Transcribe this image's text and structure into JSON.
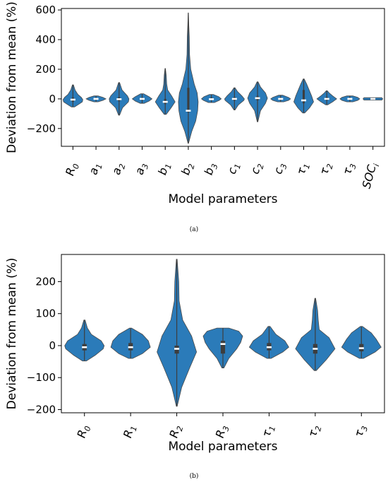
{
  "chart_data": [
    {
      "type": "violin",
      "caption": "(a)",
      "xlabel": "Model parameters",
      "ylabel": "Deviation from mean (%)",
      "ylim": [
        -320,
        610
      ],
      "yticks": [
        -200,
        0,
        200,
        400,
        600
      ],
      "tick_labels": [
        "−200",
        "0",
        "200",
        "400",
        "600"
      ],
      "color": "#2b7bb9",
      "categories": [
        {
          "base": "R",
          "sub": "0"
        },
        {
          "base": "a",
          "sub": "1"
        },
        {
          "base": "a",
          "sub": "2"
        },
        {
          "base": "a",
          "sub": "3"
        },
        {
          "base": "b",
          "sub": "1"
        },
        {
          "base": "b",
          "sub": "2"
        },
        {
          "base": "b",
          "sub": "3"
        },
        {
          "base": "c",
          "sub": "1"
        },
        {
          "base": "c",
          "sub": "2"
        },
        {
          "base": "c",
          "sub": "3"
        },
        {
          "base": "τ",
          "sub": "1"
        },
        {
          "base": "τ",
          "sub": "2"
        },
        {
          "base": "τ",
          "sub": "3"
        },
        {
          "base": "SOC",
          "sub": "i"
        }
      ],
      "violins": [
        {
          "min": -55,
          "max": 95,
          "median": -5,
          "q1": -20,
          "q3": 10,
          "shape": [
            [
              -55,
              0.15
            ],
            [
              -40,
              0.5
            ],
            [
              -20,
              0.95
            ],
            [
              -5,
              1.0
            ],
            [
              10,
              0.85
            ],
            [
              30,
              0.5
            ],
            [
              60,
              0.22
            ],
            [
              95,
              0.05
            ]
          ]
        },
        {
          "min": -20,
          "max": 20,
          "median": 0,
          "q1": -5,
          "q3": 5,
          "shape": [
            [
              -20,
              0.2
            ],
            [
              -10,
              0.7
            ],
            [
              0,
              1.0
            ],
            [
              10,
              0.7
            ],
            [
              20,
              0.2
            ]
          ]
        },
        {
          "min": -110,
          "max": 110,
          "median": -2,
          "q1": -15,
          "q3": 12,
          "shape": [
            [
              -110,
              0.05
            ],
            [
              -60,
              0.35
            ],
            [
              -20,
              0.95
            ],
            [
              0,
              1.0
            ],
            [
              20,
              0.85
            ],
            [
              60,
              0.3
            ],
            [
              110,
              0.05
            ]
          ]
        },
        {
          "min": -30,
          "max": 35,
          "median": 0,
          "q1": -8,
          "q3": 8,
          "shape": [
            [
              -30,
              0.2
            ],
            [
              -15,
              0.7
            ],
            [
              0,
              1.0
            ],
            [
              15,
              0.7
            ],
            [
              35,
              0.15
            ]
          ]
        },
        {
          "min": -105,
          "max": 205,
          "median": -20,
          "q1": -35,
          "q3": 0,
          "shape": [
            [
              -105,
              0.1
            ],
            [
              -60,
              0.6
            ],
            [
              -20,
              1.0
            ],
            [
              20,
              0.65
            ],
            [
              60,
              0.25
            ],
            [
              100,
              0.15
            ],
            [
              160,
              0.1
            ],
            [
              205,
              0.02
            ]
          ]
        },
        {
          "min": -300,
          "max": 580,
          "median": -80,
          "q1": -90,
          "q3": 75,
          "shape": [
            [
              -300,
              0.02
            ],
            [
              -220,
              0.35
            ],
            [
              -150,
              0.75
            ],
            [
              -80,
              0.95
            ],
            [
              -20,
              1.0
            ],
            [
              40,
              0.9
            ],
            [
              100,
              0.6
            ],
            [
              200,
              0.25
            ],
            [
              300,
              0.13
            ],
            [
              420,
              0.1
            ],
            [
              500,
              0.05
            ],
            [
              580,
              0.01
            ]
          ]
        },
        {
          "min": -25,
          "max": 30,
          "median": -2,
          "q1": -8,
          "q3": 8,
          "shape": [
            [
              -25,
              0.3
            ],
            [
              -10,
              0.8
            ],
            [
              0,
              1.0
            ],
            [
              15,
              0.75
            ],
            [
              30,
              0.2
            ]
          ]
        },
        {
          "min": -75,
          "max": 75,
          "median": 0,
          "q1": -12,
          "q3": 12,
          "shape": [
            [
              -75,
              0.05
            ],
            [
              -40,
              0.4
            ],
            [
              -10,
              0.95
            ],
            [
              0,
              1.0
            ],
            [
              20,
              0.75
            ],
            [
              50,
              0.3
            ],
            [
              75,
              0.05
            ]
          ]
        },
        {
          "min": -155,
          "max": 115,
          "median": 5,
          "q1": -10,
          "q3": 20,
          "shape": [
            [
              -155,
              0.03
            ],
            [
              -80,
              0.3
            ],
            [
              -30,
              0.8
            ],
            [
              5,
              1.0
            ],
            [
              40,
              0.8
            ],
            [
              80,
              0.3
            ],
            [
              115,
              0.05
            ]
          ]
        },
        {
          "min": -20,
          "max": 25,
          "median": 0,
          "q1": -6,
          "q3": 6,
          "shape": [
            [
              -20,
              0.3
            ],
            [
              -10,
              0.8
            ],
            [
              0,
              1.0
            ],
            [
              10,
              0.8
            ],
            [
              25,
              0.2
            ]
          ]
        },
        {
          "min": -95,
          "max": 135,
          "median": -10,
          "q1": -30,
          "q3": 60,
          "shape": [
            [
              -95,
              0.1
            ],
            [
              -60,
              0.6
            ],
            [
              -20,
              1.0
            ],
            [
              20,
              0.8
            ],
            [
              60,
              0.55
            ],
            [
              100,
              0.3
            ],
            [
              135,
              0.05
            ]
          ]
        },
        {
          "min": -40,
          "max": 55,
          "median": 0,
          "q1": -10,
          "q3": 12,
          "shape": [
            [
              -40,
              0.1
            ],
            [
              -20,
              0.6
            ],
            [
              0,
              1.0
            ],
            [
              20,
              0.6
            ],
            [
              40,
              0.25
            ],
            [
              55,
              0.05
            ]
          ]
        },
        {
          "min": -20,
          "max": 20,
          "median": 0,
          "q1": -5,
          "q3": 5,
          "shape": [
            [
              -20,
              0.3
            ],
            [
              -10,
              0.8
            ],
            [
              0,
              1.0
            ],
            [
              10,
              0.8
            ],
            [
              20,
              0.3
            ]
          ]
        },
        {
          "min": -8,
          "max": 8,
          "median": 0,
          "q1": -2,
          "q3": 2,
          "shape": [
            [
              -8,
              0.9
            ],
            [
              0,
              1.0
            ],
            [
              8,
              0.9
            ]
          ]
        }
      ]
    },
    {
      "type": "violin",
      "caption": "(b)",
      "xlabel": "Model parameters",
      "ylabel": "Deviation from mean (%)",
      "ylim": [
        -210,
        285
      ],
      "yticks": [
        -200,
        -100,
        0,
        100,
        200
      ],
      "tick_labels": [
        "−200",
        "−100",
        "0",
        "100",
        "200"
      ],
      "color": "#2b7bb9",
      "categories": [
        {
          "base": "R",
          "sub": "0"
        },
        {
          "base": "R",
          "sub": "1"
        },
        {
          "base": "R",
          "sub": "2"
        },
        {
          "base": "R",
          "sub": "3"
        },
        {
          "base": "τ",
          "sub": "1"
        },
        {
          "base": "τ",
          "sub": "2"
        },
        {
          "base": "τ",
          "sub": "3"
        }
      ],
      "violins": [
        {
          "min": -48,
          "max": 80,
          "median": -5,
          "q1": -15,
          "q3": 5,
          "shape": [
            [
              -48,
              0.1
            ],
            [
              -30,
              0.55
            ],
            [
              -10,
              0.95
            ],
            [
              0,
              1.0
            ],
            [
              15,
              0.85
            ],
            [
              35,
              0.35
            ],
            [
              55,
              0.15
            ],
            [
              80,
              0.03
            ]
          ]
        },
        {
          "min": -40,
          "max": 55,
          "median": -5,
          "q1": -15,
          "q3": 8,
          "shape": [
            [
              -40,
              0.1
            ],
            [
              -25,
              0.6
            ],
            [
              -5,
              1.0
            ],
            [
              15,
              0.9
            ],
            [
              35,
              0.6
            ],
            [
              55,
              0.05
            ]
          ]
        },
        {
          "min": -190,
          "max": 270,
          "median": -10,
          "q1": -25,
          "q3": 0,
          "shape": [
            [
              -190,
              0.02
            ],
            [
              -130,
              0.25
            ],
            [
              -70,
              0.65
            ],
            [
              -20,
              1.0
            ],
            [
              30,
              0.75
            ],
            [
              80,
              0.3
            ],
            [
              140,
              0.12
            ],
            [
              200,
              0.1
            ],
            [
              270,
              0.02
            ]
          ]
        },
        {
          "min": -70,
          "max": 55,
          "median": 5,
          "q1": -25,
          "q3": 15,
          "shape": [
            [
              -70,
              0.05
            ],
            [
              -40,
              0.3
            ],
            [
              -10,
              0.7
            ],
            [
              10,
              0.9
            ],
            [
              30,
              1.0
            ],
            [
              45,
              0.8
            ],
            [
              55,
              0.3
            ]
          ]
        },
        {
          "min": -40,
          "max": 60,
          "median": -5,
          "q1": -15,
          "q3": 8,
          "shape": [
            [
              -40,
              0.1
            ],
            [
              -20,
              0.7
            ],
            [
              -5,
              1.0
            ],
            [
              15,
              0.8
            ],
            [
              35,
              0.35
            ],
            [
              60,
              0.05
            ]
          ]
        },
        {
          "min": -78,
          "max": 148,
          "median": -10,
          "q1": -25,
          "q3": 5,
          "shape": [
            [
              -78,
              0.05
            ],
            [
              -45,
              0.55
            ],
            [
              -10,
              1.0
            ],
            [
              25,
              0.7
            ],
            [
              50,
              0.2
            ],
            [
              80,
              0.15
            ],
            [
              110,
              0.12
            ],
            [
              148,
              0.02
            ]
          ]
        },
        {
          "min": -40,
          "max": 60,
          "median": -8,
          "q1": -18,
          "q3": 5,
          "shape": [
            [
              -40,
              0.1
            ],
            [
              -20,
              0.7
            ],
            [
              -5,
              1.0
            ],
            [
              20,
              0.75
            ],
            [
              40,
              0.5
            ],
            [
              60,
              0.05
            ]
          ]
        }
      ]
    }
  ]
}
